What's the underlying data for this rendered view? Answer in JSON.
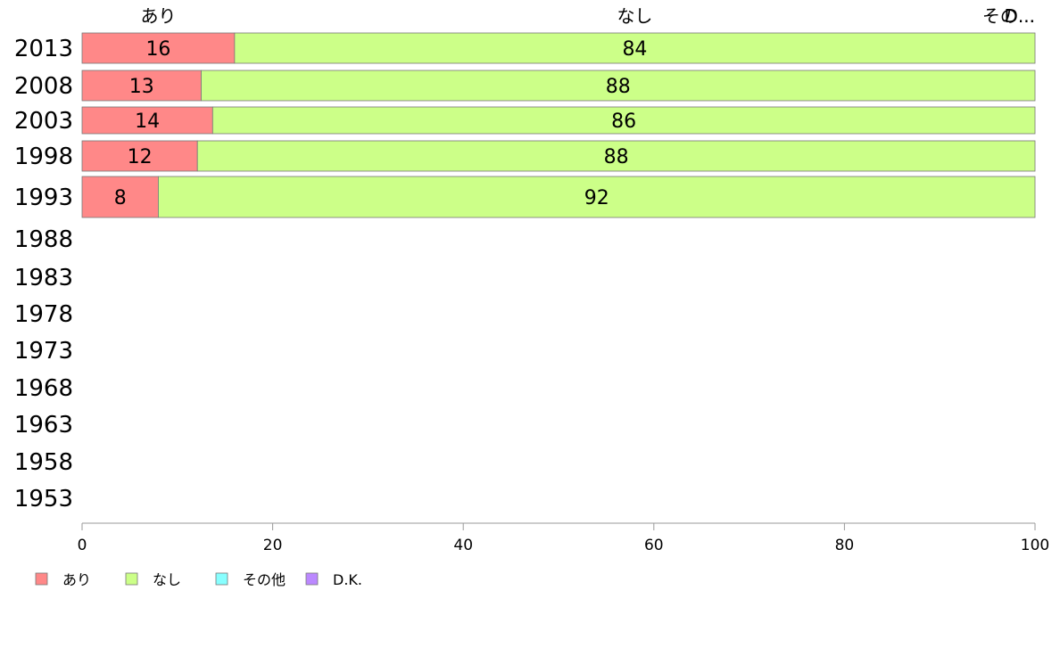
{
  "chart_data": {
    "type": "bar",
    "orientation": "horizontal",
    "stacked": true,
    "title": "",
    "xlabel": "",
    "ylabel": "",
    "xlim": [
      0,
      100
    ],
    "x_ticks": [
      "0",
      "20",
      "40",
      "60",
      "80",
      "100"
    ],
    "categories": [
      "2013",
      "2008",
      "2003",
      "1998",
      "1993",
      "1988",
      "1983",
      "1978",
      "1973",
      "1968",
      "1963",
      "1958",
      "1953"
    ],
    "series": [
      {
        "name": "あり",
        "color": "#ff8888",
        "values": [
          16,
          12.5,
          13.7,
          12.1,
          8,
          null,
          null,
          null,
          null,
          null,
          null,
          null,
          null
        ],
        "labels": [
          "16",
          "13",
          "14",
          "12",
          "8",
          "",
          "",
          "",
          "",
          "",
          "",
          "",
          ""
        ]
      },
      {
        "name": "なし",
        "color": "#ccff88",
        "values": [
          84,
          87.5,
          86.3,
          87.9,
          92,
          null,
          null,
          null,
          null,
          null,
          null,
          null,
          null
        ],
        "labels": [
          "84",
          "88",
          "86",
          "88",
          "92",
          "",
          "",
          "",
          "",
          "",
          "",
          "",
          ""
        ]
      },
      {
        "name": "その他",
        "color": "#88ffff",
        "values": [
          0,
          0,
          0,
          0,
          0,
          null,
          null,
          null,
          null,
          null,
          null,
          null,
          null
        ],
        "labels": [
          "",
          "",
          "",
          "",
          "",
          "",
          "",
          "",
          "",
          "",
          "",
          "",
          ""
        ]
      },
      {
        "name": "D.K.",
        "color": "#bb88ff",
        "values": [
          0,
          0,
          0,
          0,
          0,
          null,
          null,
          null,
          null,
          null,
          null,
          null,
          null
        ],
        "labels": [
          "",
          "",
          "",
          "",
          "",
          "",
          "",
          "",
          "",
          "",
          "",
          "",
          ""
        ]
      }
    ],
    "top_labels": [
      "あり",
      "なし",
      "その...",
      "D..."
    ],
    "legend_position": "bottom-left",
    "grid": false
  }
}
